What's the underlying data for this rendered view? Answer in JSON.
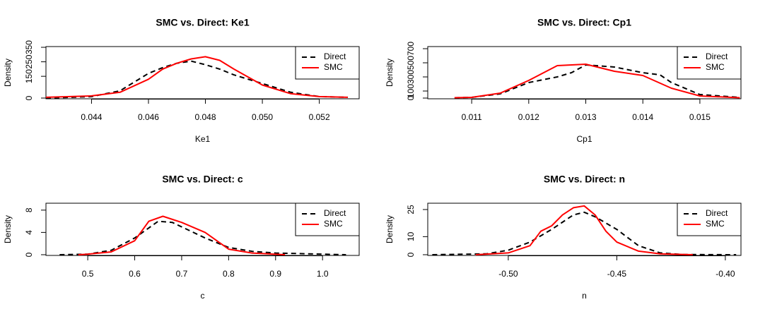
{
  "chart_data": [
    {
      "type": "line",
      "title": "SMC vs. Direct: Ke1",
      "xlabel": "Ke1",
      "ylabel": "Density",
      "xlim": [
        0.0424,
        0.0534
      ],
      "xticks": [
        0.044,
        0.046,
        0.048,
        {
          "value": 0.05,
          "label": "0.050"
        },
        0.052
      ],
      "ylim": [
        -5,
        355
      ],
      "yticks": [
        0,
        150,
        250,
        350
      ],
      "legend": "topright",
      "series": [
        {
          "name": "Direct",
          "color": "#000000",
          "linestyle": "dashed",
          "x": [
            0.0424,
            0.044,
            0.045,
            0.046,
            0.0465,
            0.047,
            0.0475,
            0.048,
            0.0485,
            0.049,
            0.05,
            0.051,
            0.052,
            0.053
          ],
          "values": [
            0,
            10,
            50,
            170,
            210,
            240,
            255,
            230,
            200,
            160,
            100,
            40,
            10,
            5
          ]
        },
        {
          "name": "SMC",
          "color": "#ff0000",
          "linestyle": "solid",
          "x": [
            0.0424,
            0.044,
            0.045,
            0.046,
            0.0465,
            0.047,
            0.0475,
            0.048,
            0.0485,
            0.049,
            0.05,
            0.051,
            0.052,
            0.053
          ],
          "values": [
            5,
            15,
            40,
            130,
            200,
            240,
            270,
            285,
            260,
            200,
            90,
            30,
            10,
            5
          ]
        }
      ]
    },
    {
      "type": "line",
      "title": "SMC vs. Direct: Cp1",
      "xlabel": "Cp1",
      "ylabel": "Density",
      "xlim": [
        0.01023,
        0.01572
      ],
      "xticks": [
        0.011,
        0.012,
        0.013,
        0.014,
        0.015
      ],
      "ylim": [
        -10,
        730
      ],
      "yticks": [
        0,
        100,
        300,
        500,
        700
      ],
      "legend": "topright",
      "series": [
        {
          "name": "Direct",
          "color": "#000000",
          "linestyle": "dashed",
          "x": [
            0.0107,
            0.011,
            0.0115,
            0.012,
            0.0125,
            0.01275,
            0.013,
            0.0135,
            0.014,
            0.0143,
            0.0145,
            0.015,
            0.0157
          ],
          "values": [
            5,
            10,
            60,
            220,
            300,
            360,
            470,
            440,
            360,
            330,
            220,
            50,
            10
          ]
        },
        {
          "name": "SMC",
          "color": "#ff0000",
          "linestyle": "solid",
          "x": [
            0.0107,
            0.011,
            0.0115,
            0.012,
            0.0125,
            0.013,
            0.0135,
            0.014,
            0.0145,
            0.015,
            0.0157
          ],
          "values": [
            5,
            10,
            70,
            250,
            460,
            480,
            380,
            320,
            140,
            30,
            5
          ]
        }
      ]
    },
    {
      "type": "line",
      "title": "SMC vs. Direct: c",
      "xlabel": "c",
      "ylabel": "Density",
      "xlim": [
        0.411,
        1.078
      ],
      "xticks": [
        0.5,
        0.6,
        0.7,
        0.8,
        0.9,
        {
          "value": 1,
          "label": "1.0"
        }
      ],
      "ylim": [
        -0.13,
        9.24
      ],
      "yticks": [
        0,
        4,
        8
      ],
      "legend": "topright",
      "series": [
        {
          "name": "Direct",
          "color": "#000000",
          "linestyle": "dashed",
          "x": [
            0.44,
            0.5,
            0.55,
            0.6,
            0.65,
            0.68,
            0.7,
            0.75,
            0.8,
            0.85,
            0.9,
            1.05
          ],
          "values": [
            0,
            0.1,
            0.8,
            3,
            6,
            5.8,
            5,
            3,
            1.3,
            0.6,
            0.3,
            0
          ]
        },
        {
          "name": "SMC",
          "color": "#ff0000",
          "linestyle": "solid",
          "x": [
            0.48,
            0.5,
            0.55,
            0.6,
            0.63,
            0.66,
            0.7,
            0.75,
            0.8,
            0.85,
            0.92
          ],
          "values": [
            0,
            0.1,
            0.5,
            2.5,
            6,
            6.9,
            5.8,
            4,
            1,
            0.3,
            0
          ]
        }
      ]
    },
    {
      "type": "line",
      "title": "SMC vs. Direct: n",
      "xlabel": "n",
      "ylabel": "Density",
      "xlim": [
        -0.5371,
        -0.3928
      ],
      "xticks": [
        {
          "value": -0.5,
          "label": "-0.50"
        },
        {
          "value": -0.45,
          "label": "-0.45"
        },
        {
          "value": -0.4,
          "label": "-0.40"
        }
      ],
      "ylim": [
        -0.4,
        28.5
      ],
      "yticks": [
        0,
        10,
        25
      ],
      "legend": "topright",
      "series": [
        {
          "name": "Direct",
          "color": "#000000",
          "linestyle": "dashed",
          "x": [
            -0.535,
            -0.51,
            -0.5,
            -0.49,
            -0.48,
            -0.47,
            -0.465,
            -0.46,
            -0.45,
            -0.44,
            -0.43,
            -0.42,
            -0.395
          ],
          "values": [
            0,
            0.5,
            2.5,
            7,
            14,
            22,
            23.5,
            21,
            14,
            5,
            1,
            0.1,
            0
          ]
        },
        {
          "name": "SMC",
          "color": "#ff0000",
          "linestyle": "solid",
          "x": [
            -0.515,
            -0.5,
            -0.49,
            -0.485,
            -0.48,
            -0.475,
            -0.47,
            -0.465,
            -0.46,
            -0.455,
            -0.45,
            -0.44,
            -0.43,
            -0.415
          ],
          "values": [
            0,
            1,
            5,
            13,
            16,
            22,
            26,
            27,
            22,
            13,
            7,
            2,
            0.5,
            0
          ]
        }
      ]
    }
  ]
}
